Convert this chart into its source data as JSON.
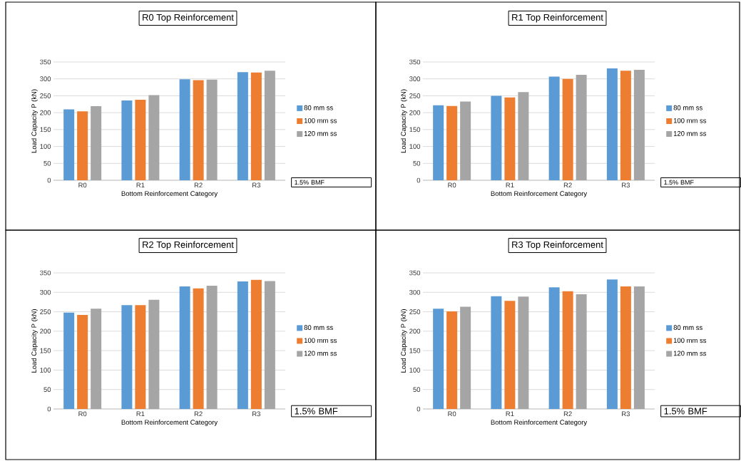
{
  "chart_data": [
    {
      "type": "bar",
      "title": "R0 Top Reinforcement",
      "xlabel": "Bottom Reinforcement Category",
      "ylabel": "Load Capacity P (kN)",
      "categories": [
        "R0",
        "R1",
        "R2",
        "R3"
      ],
      "ylim": [
        0,
        350
      ],
      "yticks": [
        0,
        50,
        100,
        150,
        200,
        250,
        300,
        350
      ],
      "grid": "y",
      "legend": "right",
      "annotations": [
        "1.5% BMF"
      ],
      "series": [
        {
          "name": "80 mm ss",
          "color": "#5b9bd5",
          "values": [
            210,
            236,
            299,
            320
          ]
        },
        {
          "name": "100 mm ss",
          "color": "#ed7d31",
          "values": [
            204,
            238,
            296,
            319
          ]
        },
        {
          "name": "120 mm ss",
          "color": "#a5a5a5",
          "values": [
            219,
            252,
            298,
            324
          ]
        }
      ]
    },
    {
      "type": "bar",
      "title": "R1 Top Reinforcement",
      "xlabel": "Bottom Reinforcement Category",
      "ylabel": "Load Capacity P (kN)",
      "categories": [
        "R0",
        "R1",
        "R2",
        "R3"
      ],
      "ylim": [
        0,
        350
      ],
      "yticks": [
        0,
        50,
        100,
        150,
        200,
        250,
        300,
        350
      ],
      "grid": "y",
      "legend": "right",
      "annotations": [
        "1.5% BMF"
      ],
      "series": [
        {
          "name": "80 mm ss",
          "color": "#5b9bd5",
          "values": [
            222,
            250,
            307,
            331
          ]
        },
        {
          "name": "100 mm ss",
          "color": "#ed7d31",
          "values": [
            220,
            245,
            300,
            324
          ]
        },
        {
          "name": "120 mm ss",
          "color": "#a5a5a5",
          "values": [
            233,
            261,
            312,
            327
          ]
        }
      ]
    },
    {
      "type": "bar",
      "title": "R2 Top Reinforcement",
      "xlabel": "Bottom Reinforcement Category",
      "ylabel": "Load Capacity P (kN)",
      "categories": [
        "R0",
        "R1",
        "R2",
        "R3"
      ],
      "ylim": [
        0,
        350
      ],
      "yticks": [
        0,
        50,
        100,
        150,
        200,
        250,
        300,
        350
      ],
      "grid": "y",
      "legend": "right",
      "annotations": [
        "1.5% BMF"
      ],
      "series": [
        {
          "name": "80 mm ss",
          "color": "#5b9bd5",
          "values": [
            248,
            267,
            315,
            328
          ]
        },
        {
          "name": "100 mm ss",
          "color": "#ed7d31",
          "values": [
            242,
            267,
            310,
            332
          ]
        },
        {
          "name": "120 mm ss",
          "color": "#a5a5a5",
          "values": [
            258,
            281,
            317,
            329
          ]
        }
      ]
    },
    {
      "type": "bar",
      "title": "R3 Top Reinforcement",
      "xlabel": "Bottom Reinforcement Category",
      "ylabel": "Load Capacity P (kN)",
      "categories": [
        "R0",
        "R1",
        "R2",
        "R3"
      ],
      "ylim": [
        0,
        350
      ],
      "yticks": [
        0,
        50,
        100,
        150,
        200,
        250,
        300,
        350
      ],
      "grid": "y",
      "legend": "right",
      "annotations": [
        "1.5% BMF"
      ],
      "series": [
        {
          "name": "80 mm ss",
          "color": "#5b9bd5",
          "values": [
            258,
            290,
            313,
            333
          ]
        },
        {
          "name": "100 mm ss",
          "color": "#ed7d31",
          "values": [
            251,
            278,
            303,
            315
          ]
        },
        {
          "name": "120 mm ss",
          "color": "#a5a5a5",
          "values": [
            263,
            289,
            295,
            315
          ]
        }
      ]
    }
  ]
}
